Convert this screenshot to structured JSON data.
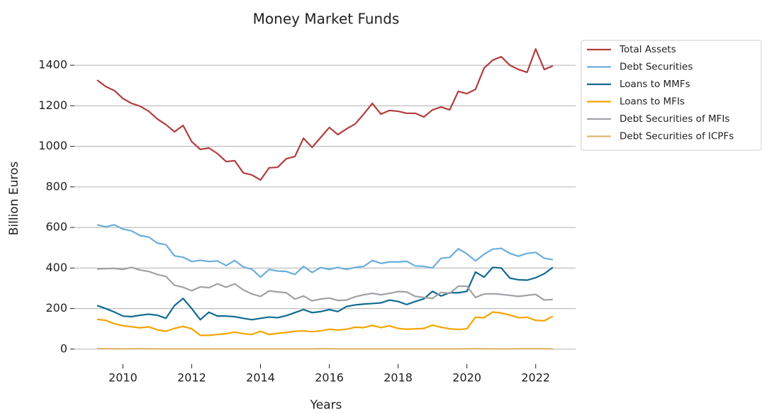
{
  "chart_data": {
    "type": "line",
    "title": "Money Market Funds",
    "x_label": "Years",
    "y_label": "Billion Euros",
    "x": [
      2009.25,
      2009.5,
      2009.75,
      2010,
      2010.25,
      2010.5,
      2010.75,
      2011,
      2011.25,
      2011.5,
      2011.75,
      2012,
      2012.25,
      2012.5,
      2012.75,
      2013,
      2013.25,
      2013.5,
      2013.75,
      2014,
      2014.25,
      2014.5,
      2014.75,
      2015,
      2015.25,
      2015.5,
      2015.75,
      2016,
      2016.25,
      2016.5,
      2016.75,
      2017,
      2017.25,
      2017.5,
      2017.75,
      2018,
      2018.25,
      2018.5,
      2018.75,
      2019,
      2019.25,
      2019.5,
      2019.75,
      2020,
      2020.25,
      2020.5,
      2020.75,
      2021,
      2021.25,
      2021.5,
      2021.75,
      2022,
      2022.25,
      2022.5
    ],
    "series": [
      {
        "name": "Total Assets",
        "color": "#b13d3d",
        "values": [
          1327,
          1295,
          1275,
          1236,
          1212,
          1198,
          1173,
          1135,
          1107,
          1072,
          1103,
          1023,
          985,
          992,
          964,
          925,
          929,
          869,
          859,
          834,
          894,
          897,
          939,
          950,
          1040,
          995,
          1044,
          1093,
          1058,
          1086,
          1110,
          1159,
          1212,
          1159,
          1177,
          1173,
          1163,
          1163,
          1145,
          1180,
          1194,
          1180,
          1271,
          1260,
          1281,
          1386,
          1425,
          1442,
          1400,
          1379,
          1365,
          1480,
          1379,
          1397
        ]
      },
      {
        "name": "Debt Securities",
        "color": "#6aaedc",
        "values": [
          613,
          603,
          613,
          592,
          583,
          560,
          553,
          523,
          515,
          460,
          453,
          432,
          438,
          432,
          435,
          412,
          437,
          405,
          394,
          355,
          393,
          385,
          383,
          368,
          408,
          378,
          402,
          393,
          403,
          393,
          403,
          408,
          437,
          423,
          430,
          430,
          433,
          410,
          408,
          400,
          448,
          452,
          495,
          470,
          435,
          468,
          493,
          497,
          472,
          458,
          472,
          477,
          448,
          441
        ]
      },
      {
        "name": "Loans to MMFs",
        "color": "#106a92",
        "values": [
          215,
          200,
          183,
          163,
          160,
          167,
          172,
          167,
          152,
          215,
          250,
          200,
          145,
          182,
          163,
          163,
          160,
          152,
          145,
          152,
          158,
          155,
          165,
          180,
          195,
          180,
          185,
          195,
          185,
          210,
          218,
          222,
          225,
          228,
          242,
          235,
          220,
          235,
          248,
          285,
          262,
          278,
          278,
          285,
          380,
          355,
          403,
          400,
          350,
          342,
          340,
          352,
          372,
          403
        ]
      },
      {
        "name": "Loans to MFIs",
        "color": "#f5a500",
        "values": [
          147,
          142,
          125,
          115,
          110,
          105,
          110,
          95,
          88,
          102,
          112,
          100,
          68,
          68,
          72,
          76,
          84,
          76,
          72,
          88,
          72,
          78,
          82,
          88,
          90,
          86,
          90,
          98,
          94,
          98,
          108,
          106,
          117,
          106,
          115,
          102,
          98,
          100,
          102,
          118,
          108,
          100,
          97,
          100,
          157,
          155,
          183,
          178,
          168,
          155,
          157,
          142,
          140,
          162
        ]
      },
      {
        "name": "Debt Securities of MFIs",
        "color": "#a0a0a6",
        "values": [
          395,
          397,
          398,
          393,
          403,
          390,
          383,
          368,
          358,
          315,
          305,
          288,
          307,
          303,
          322,
          305,
          322,
          292,
          272,
          260,
          287,
          282,
          278,
          247,
          262,
          238,
          247,
          252,
          240,
          242,
          258,
          268,
          275,
          268,
          275,
          284,
          282,
          260,
          255,
          250,
          280,
          275,
          310,
          310,
          255,
          272,
          273,
          270,
          265,
          260,
          265,
          270,
          242,
          245
        ]
      },
      {
        "name": "Debt Securities of ICPFs",
        "color": "#e0b870",
        "values": [
          3,
          2,
          2,
          1,
          2,
          2,
          2,
          1,
          1,
          1,
          1,
          1,
          1,
          1,
          1,
          1,
          1,
          1,
          1,
          1,
          1,
          1,
          1,
          1,
          1,
          1,
          2,
          2,
          1,
          1,
          1,
          1,
          1,
          1,
          1,
          1,
          1,
          1,
          1,
          1,
          1,
          1,
          1,
          2,
          2,
          2,
          1,
          1,
          1,
          2,
          2,
          2,
          2,
          1
        ]
      }
    ],
    "xlim": [
      2008.59,
      2023.16
    ],
    "xticks": [
      2010,
      2012,
      2014,
      2016,
      2018,
      2020,
      2022
    ],
    "ylim": [
      -74,
      1554
    ],
    "yticks": [
      0,
      200,
      400,
      600,
      800,
      1000,
      1200,
      1400
    ],
    "grid": true,
    "legend": "upper right outside"
  }
}
